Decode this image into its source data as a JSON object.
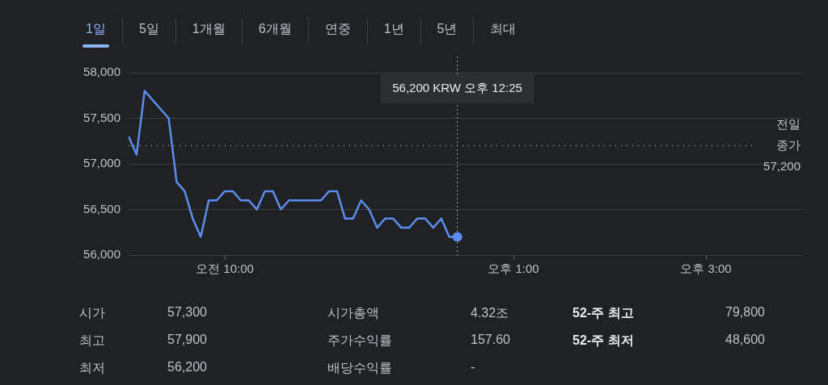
{
  "chart_data": [
    {
      "type": "other",
      "annotations": [
        "1일",
        "5일",
        "1개월",
        "6개월",
        "연중",
        "1년",
        "5년",
        "최대"
      ]
    },
    {
      "type": "line",
      "categories": [
        null,
        null,
        null,
        null,
        null,
        null,
        null,
        null,
        null,
        null,
        null,
        null,
        "오전 10:00",
        null,
        null,
        null,
        null,
        null,
        null,
        null,
        null,
        null,
        null,
        null,
        null,
        null,
        null,
        null,
        null,
        null,
        null,
        null,
        null,
        null,
        null,
        null,
        null,
        null,
        null,
        null,
        null,
        null,
        null,
        null,
        null,
        null,
        null,
        null,
        "오후 1:00",
        null,
        null,
        null,
        null,
        null,
        null,
        null,
        null,
        null,
        null,
        null,
        null,
        null,
        null,
        null,
        null,
        null,
        null,
        null,
        null,
        null,
        null,
        null,
        "오후 3:00",
        null,
        null,
        null,
        null,
        null,
        null,
        null,
        null,
        null,
        null,
        null,
        null
      ],
      "series": [
        {
          "color": "#5b8def",
          "values": [
            57300,
            57100,
            57800,
            null,
            null,
            57500,
            56800,
            56700,
            56400,
            56200,
            56600,
            56600,
            56700,
            56700,
            56600,
            56600,
            56500,
            56700,
            56700,
            56500,
            56600,
            56600,
            56600,
            56600,
            56600,
            56700,
            56700,
            56400,
            56400,
            56600,
            56500,
            56300,
            56400,
            56400,
            56300,
            56300,
            56400,
            56400,
            56300,
            56400,
            56200,
            56200,
            null,
            null,
            null,
            null,
            null,
            null,
            null,
            null,
            null,
            null,
            null,
            null,
            null,
            null,
            null,
            null,
            null,
            null,
            null,
            null,
            null,
            null,
            null,
            null,
            null,
            null,
            null,
            null,
            null,
            null,
            null,
            null,
            null,
            null,
            null,
            null,
            null,
            null,
            null,
            null,
            null,
            null,
            null
          ]
        }
      ],
      "ylim": [
        56000,
        58000
      ],
      "yticks": [
        {
          "value": 56000,
          "label": "56,000"
        },
        {
          "value": 56500,
          "label": "56,500"
        },
        {
          "value": 57000,
          "label": "57,000"
        },
        {
          "value": 57500,
          "label": "57,500"
        },
        {
          "value": 58000,
          "label": "58,000"
        }
      ],
      "grid": "y",
      "legend": false,
      "marker": "none",
      "line_style": "solid",
      "ref_lines": [
        {
          "axis": "y",
          "value": 57200,
          "label": "전일 종가 57,200",
          "line_style": "dotted"
        }
      ],
      "annotations": [
        "56,200 KRW 오후 12:25"
      ]
    },
    {
      "type": "other",
      "annotations": [
        "시가",
        "57,300",
        "시가총액",
        "4.32조",
        "52-주 최고",
        "79,800",
        "최고",
        "57,900",
        "주가수익률",
        "157.60",
        "52-주 최저",
        "48,600",
        "최저",
        "56,200",
        "배당수익률",
        "-"
      ]
    }
  ]
}
